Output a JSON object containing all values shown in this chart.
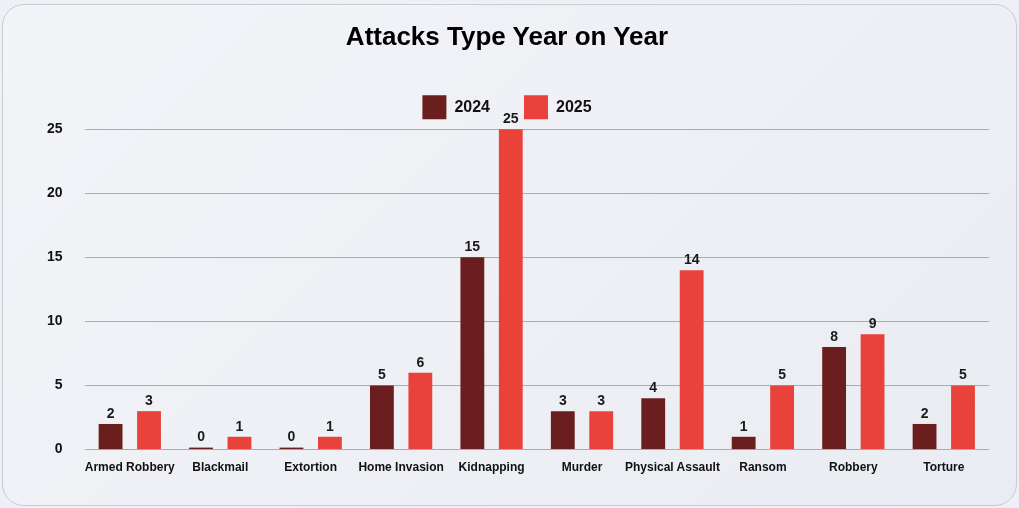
{
  "chart_data": {
    "type": "bar",
    "title": "Attacks Type Year on Year",
    "categories": [
      "Armed Robbery",
      "Blackmail",
      "Extortion",
      "Home Invasion",
      "Kidnapping",
      "Murder",
      "Physical Assault",
      "Ransom",
      "Robbery",
      "Torture"
    ],
    "series": [
      {
        "name": "2024",
        "color": "#6b1e1e",
        "values": [
          2,
          0,
          0,
          5,
          15,
          3,
          4,
          1,
          8,
          2
        ]
      },
      {
        "name": "2025",
        "color": "#e8423a",
        "values": [
          3,
          1,
          1,
          6,
          25,
          3,
          14,
          5,
          9,
          5
        ]
      }
    ],
    "ylim": [
      0,
      25
    ],
    "yticks": [
      0,
      5,
      10,
      15,
      20,
      25
    ],
    "grid": "y",
    "legend": "top",
    "data_labels": true
  }
}
